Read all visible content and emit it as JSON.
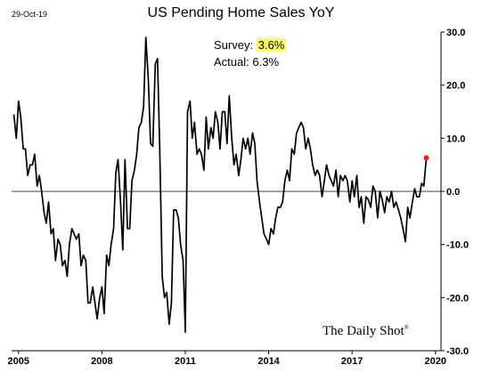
{
  "header": {
    "date": "29-Oct-19"
  },
  "chart_data": {
    "type": "line",
    "title": "US Pending Home Sales YoY",
    "xlabel": "",
    "ylabel": "",
    "xlim": [
      2004.75,
      2020.2
    ],
    "ylim": [
      -30,
      30
    ],
    "x_ticks": [
      2005,
      2008,
      2011,
      2014,
      2017,
      2020
    ],
    "x_tick_labels": [
      "2005",
      "2008",
      "2011",
      "2014",
      "2017",
      "2020"
    ],
    "y_ticks": [
      30,
      20,
      10,
      0,
      -10,
      -20,
      -30
    ],
    "y_tick_labels": [
      "30.0",
      "20.0",
      "10.0",
      "0.0",
      "-10.0",
      "-20.0",
      "-30.0"
    ],
    "grid": false,
    "zero_line": true,
    "series": [
      {
        "color": "#000000",
        "points": [
          [
            2004.83,
            14.5
          ],
          [
            2004.92,
            10.0
          ],
          [
            2005.0,
            17.0
          ],
          [
            2005.08,
            14.0
          ],
          [
            2005.17,
            8.0
          ],
          [
            2005.25,
            8.0
          ],
          [
            2005.33,
            3.0
          ],
          [
            2005.42,
            5.0
          ],
          [
            2005.5,
            5.0
          ],
          [
            2005.58,
            7.0
          ],
          [
            2005.67,
            1.0
          ],
          [
            2005.75,
            3.0
          ],
          [
            2005.83,
            0.0
          ],
          [
            2005.92,
            -4.0
          ],
          [
            2006.0,
            -6.0
          ],
          [
            2006.08,
            -2.0
          ],
          [
            2006.17,
            -8.0
          ],
          [
            2006.25,
            -7.0
          ],
          [
            2006.33,
            -13.0
          ],
          [
            2006.42,
            -9.0
          ],
          [
            2006.5,
            -10.0
          ],
          [
            2006.58,
            -14.0
          ],
          [
            2006.67,
            -13.0
          ],
          [
            2006.75,
            -16.0
          ],
          [
            2006.83,
            -10.0
          ],
          [
            2006.92,
            -7.0
          ],
          [
            2007.0,
            -8.0
          ],
          [
            2007.08,
            -9.0
          ],
          [
            2007.17,
            -8.0
          ],
          [
            2007.25,
            -14.0
          ],
          [
            2007.33,
            -12.0
          ],
          [
            2007.42,
            -13.0
          ],
          [
            2007.5,
            -21.0
          ],
          [
            2007.58,
            -21.0
          ],
          [
            2007.67,
            -18.0
          ],
          [
            2007.75,
            -21.0
          ],
          [
            2007.83,
            -24.0
          ],
          [
            2007.92,
            -20.0
          ],
          [
            2008.0,
            -18.0
          ],
          [
            2008.08,
            -23.0
          ],
          [
            2008.17,
            -12.0
          ],
          [
            2008.25,
            -14.0
          ],
          [
            2008.33,
            -10.0
          ],
          [
            2008.42,
            -7.0
          ],
          [
            2008.5,
            3.5
          ],
          [
            2008.58,
            6.0
          ],
          [
            2008.67,
            -2.0
          ],
          [
            2008.75,
            -11.0
          ],
          [
            2008.83,
            6.0
          ],
          [
            2008.92,
            -7.0
          ],
          [
            2009.0,
            -7.0
          ],
          [
            2009.08,
            2.0
          ],
          [
            2009.17,
            4.0
          ],
          [
            2009.25,
            7.0
          ],
          [
            2009.33,
            12.0
          ],
          [
            2009.42,
            13.0
          ],
          [
            2009.5,
            16.0
          ],
          [
            2009.58,
            29.0
          ],
          [
            2009.67,
            21.0
          ],
          [
            2009.75,
            9.0
          ],
          [
            2009.83,
            8.5
          ],
          [
            2009.92,
            24.0
          ],
          [
            2010.0,
            25.0
          ],
          [
            2010.08,
            8.0
          ],
          [
            2010.17,
            -16.0
          ],
          [
            2010.25,
            -20.0
          ],
          [
            2010.33,
            -19.0
          ],
          [
            2010.42,
            -25.0
          ],
          [
            2010.5,
            -21.0
          ],
          [
            2010.58,
            -3.5
          ],
          [
            2010.67,
            -3.5
          ],
          [
            2010.75,
            -5.0
          ],
          [
            2010.83,
            -10.0
          ],
          [
            2010.92,
            -13.0
          ],
          [
            2011.0,
            -26.5
          ],
          [
            2011.08,
            15.0
          ],
          [
            2011.17,
            17.0
          ],
          [
            2011.25,
            10.0
          ],
          [
            2011.33,
            13.0
          ],
          [
            2011.42,
            7.0
          ],
          [
            2011.5,
            8.0
          ],
          [
            2011.58,
            7.0
          ],
          [
            2011.67,
            4.0
          ],
          [
            2011.75,
            14.0
          ],
          [
            2011.83,
            8.0
          ],
          [
            2011.92,
            12.0
          ],
          [
            2012.0,
            10.0
          ],
          [
            2012.08,
            15.0
          ],
          [
            2012.17,
            13.0
          ],
          [
            2012.25,
            8.0
          ],
          [
            2012.33,
            15.0
          ],
          [
            2012.42,
            15.0
          ],
          [
            2012.5,
            9.0
          ],
          [
            2012.58,
            18.0
          ],
          [
            2012.67,
            10.0
          ],
          [
            2012.75,
            5.0
          ],
          [
            2012.83,
            7.0
          ],
          [
            2012.92,
            3.0
          ],
          [
            2013.0,
            6.0
          ],
          [
            2013.08,
            10.0
          ],
          [
            2013.17,
            8.0
          ],
          [
            2013.25,
            10.0
          ],
          [
            2013.33,
            7.0
          ],
          [
            2013.42,
            11.0
          ],
          [
            2013.5,
            9.0
          ],
          [
            2013.58,
            2.0
          ],
          [
            2013.67,
            -2.0
          ],
          [
            2013.75,
            -5.0
          ],
          [
            2013.83,
            -8.0
          ],
          [
            2013.92,
            -9.0
          ],
          [
            2014.0,
            -10.0
          ],
          [
            2014.08,
            -7.0
          ],
          [
            2014.17,
            -8.0
          ],
          [
            2014.25,
            -5.0
          ],
          [
            2014.33,
            -3.0
          ],
          [
            2014.42,
            -3.0
          ],
          [
            2014.5,
            -2.0
          ],
          [
            2014.58,
            2.0
          ],
          [
            2014.67,
            4.0
          ],
          [
            2014.75,
            2.0
          ],
          [
            2014.83,
            8.0
          ],
          [
            2014.92,
            7.0
          ],
          [
            2015.0,
            11.0
          ],
          [
            2015.08,
            12.0
          ],
          [
            2015.17,
            13.0
          ],
          [
            2015.25,
            12.0
          ],
          [
            2015.33,
            8.0
          ],
          [
            2015.42,
            10.0
          ],
          [
            2015.5,
            8.0
          ],
          [
            2015.58,
            5.0
          ],
          [
            2015.67,
            3.0
          ],
          [
            2015.75,
            4.0
          ],
          [
            2015.83,
            3.0
          ],
          [
            2015.92,
            -1.0
          ],
          [
            2016.0,
            2.0
          ],
          [
            2016.08,
            5.0
          ],
          [
            2016.17,
            3.0
          ],
          [
            2016.25,
            2.0
          ],
          [
            2016.33,
            1.0
          ],
          [
            2016.42,
            4.0
          ],
          [
            2016.5,
            -1.0
          ],
          [
            2016.58,
            3.0
          ],
          [
            2016.67,
            2.0
          ],
          [
            2016.75,
            3.0
          ],
          [
            2016.83,
            2.0
          ],
          [
            2016.92,
            -2.0
          ],
          [
            2017.0,
            2.0
          ],
          [
            2017.08,
            -1.0
          ],
          [
            2017.17,
            3.0
          ],
          [
            2017.25,
            -3.0
          ],
          [
            2017.33,
            -1.0
          ],
          [
            2017.42,
            -6.0
          ],
          [
            2017.5,
            -1.0
          ],
          [
            2017.58,
            -1.5
          ],
          [
            2017.67,
            -3.0
          ],
          [
            2017.75,
            1.0
          ],
          [
            2017.83,
            0.0
          ],
          [
            2017.92,
            -5.0
          ],
          [
            2018.0,
            0.0
          ],
          [
            2018.08,
            -1.5
          ],
          [
            2018.17,
            -4.0
          ],
          [
            2018.25,
            -1.0
          ],
          [
            2018.33,
            -2.0
          ],
          [
            2018.42,
            0.0
          ],
          [
            2018.5,
            -3.0
          ],
          [
            2018.58,
            -2.0
          ],
          [
            2018.67,
            -3.5
          ],
          [
            2018.75,
            -5.0
          ],
          [
            2018.83,
            -7.0
          ],
          [
            2018.92,
            -9.5
          ],
          [
            2019.0,
            -3.0
          ],
          [
            2019.08,
            -5.0
          ],
          [
            2019.17,
            -2.0
          ],
          [
            2019.25,
            0.5
          ],
          [
            2019.33,
            -1.0
          ],
          [
            2019.42,
            -1.0
          ],
          [
            2019.5,
            1.5
          ],
          [
            2019.58,
            1.0
          ],
          [
            2019.67,
            6.3
          ]
        ],
        "endpoint_marker": {
          "x": 2019.67,
          "y": 6.3,
          "color": "#e8211f"
        }
      }
    ],
    "annotations": {
      "survey_label": "Survey:",
      "survey_value": "3.6%",
      "actual_label": "Actual:",
      "actual_value": "6.3%",
      "highlight_color": "#ffff66"
    }
  },
  "watermark": {
    "text": "The Daily Shot",
    "mark": "®"
  }
}
